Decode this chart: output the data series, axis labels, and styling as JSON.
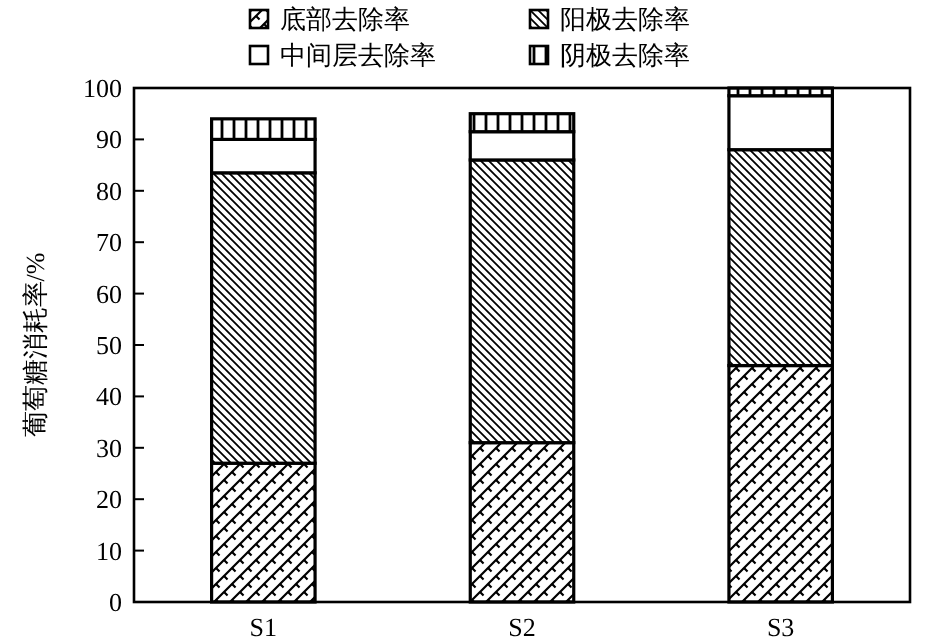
{
  "chart_data": {
    "type": "bar",
    "stacked": true,
    "ylabel": "葡萄糖消耗率/%",
    "categories": [
      "S1",
      "S2",
      "S3"
    ],
    "series": [
      {
        "name": "底部去除率",
        "color": "#000000",
        "values": [
          27,
          31,
          46
        ]
      },
      {
        "name": "阳极去除率",
        "color": "#000000",
        "values": [
          56.5,
          55,
          42
        ]
      },
      {
        "name": "中间层去除率",
        "color": "#ffffff",
        "values": [
          6.5,
          5.5,
          10.5
        ]
      },
      {
        "name": "阴极去除率",
        "color": "#000000",
        "values": [
          4,
          3.5,
          1.5
        ]
      }
    ],
    "ylim": [
      0,
      100
    ],
    "yticks": [
      0,
      10,
      20,
      30,
      40,
      50,
      60,
      70,
      80,
      90,
      100
    ],
    "legend": "top",
    "grid": false
  }
}
